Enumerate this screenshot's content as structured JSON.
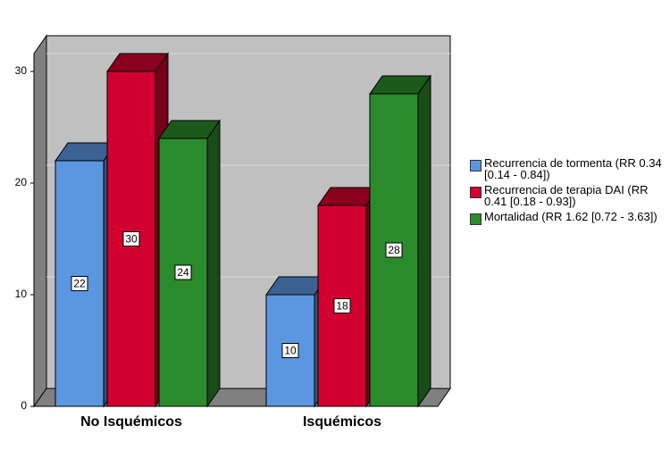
{
  "chart_data": {
    "type": "bar3d",
    "categories": [
      "No Isquémicos",
      "Isquémicos"
    ],
    "series": [
      {
        "name": "Recurrencia de tormenta (RR 0.34 [0.14 - 0.84])",
        "color": "#5b97e0",
        "values": [
          22,
          10
        ]
      },
      {
        "name": "Recurrencia de terapia DAI (RR 0.41 [0.18 - 0.93])",
        "color": "#d2002e",
        "values": [
          30,
          18
        ]
      },
      {
        "name": "Mortalidad (RR 1.62 [0.72 - 3.63])",
        "color": "#2b8a2b",
        "values": [
          24,
          28
        ]
      }
    ],
    "ylim": [
      0,
      31.6
    ],
    "yticks": [
      0,
      10,
      20,
      30
    ],
    "grid": true,
    "legend": "right"
  }
}
